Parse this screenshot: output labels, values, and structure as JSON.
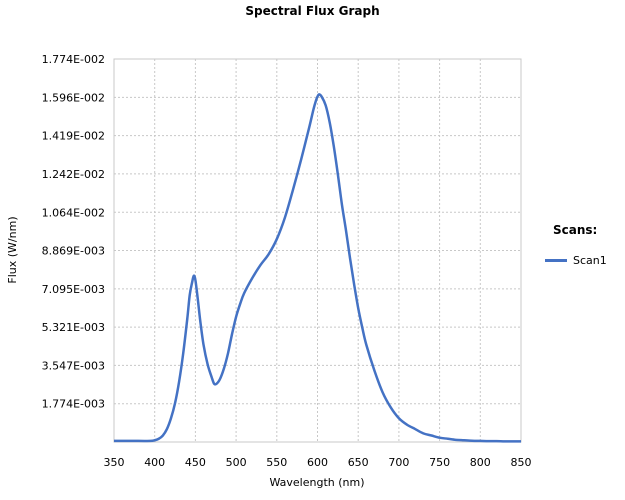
{
  "chart_data": {
    "type": "line",
    "title": "Spectral Flux Graph",
    "xlabel": "Wavelength (nm)",
    "ylabel": "Flux (W/nm)",
    "xlim": [
      350,
      850
    ],
    "ylim": [
      0,
      0.01774
    ],
    "x_ticks": [
      "350",
      "400",
      "450",
      "500",
      "550",
      "600",
      "650",
      "700",
      "750",
      "800",
      "850"
    ],
    "y_ticks": [
      "1.774E-002",
      "1.596E-002",
      "1.419E-002",
      "1.242E-002",
      "1.064E-002",
      "8.869E-003",
      "7.095E-003",
      "5.321E-003",
      "3.547E-003",
      "1.774E-003"
    ],
    "grid": true,
    "legend": {
      "title": "Scans:",
      "position": "right"
    },
    "series": [
      {
        "name": "Scan1",
        "color": "#4472c4",
        "x": [
          350,
          380,
          395,
          400,
          405,
          410,
          415,
          420,
          425,
          430,
          435,
          440,
          443,
          446,
          448,
          450,
          453,
          456,
          460,
          465,
          470,
          473,
          476,
          480,
          485,
          490,
          495,
          500,
          505,
          510,
          520,
          530,
          540,
          550,
          560,
          570,
          580,
          590,
          595,
          598,
          600,
          602,
          605,
          610,
          615,
          620,
          625,
          630,
          635,
          640,
          645,
          650,
          655,
          660,
          670,
          680,
          690,
          700,
          710,
          720,
          730,
          740,
          750,
          760,
          770,
          780,
          790,
          800,
          810,
          820,
          830,
          840,
          850
        ],
        "y": [
          5e-05,
          5e-05,
          5e-05,
          8e-05,
          0.00015,
          0.0003,
          0.0006,
          0.0011,
          0.0018,
          0.0028,
          0.0041,
          0.0057,
          0.0068,
          0.0074,
          0.0077,
          0.0075,
          0.0066,
          0.0056,
          0.0045,
          0.0036,
          0.003,
          0.0027,
          0.0027,
          0.0029,
          0.0034,
          0.0041,
          0.005,
          0.0058,
          0.0064,
          0.0069,
          0.0076,
          0.0082,
          0.0087,
          0.0094,
          0.0104,
          0.0117,
          0.0131,
          0.0146,
          0.0154,
          0.0158,
          0.016,
          0.0161,
          0.016,
          0.0156,
          0.0148,
          0.0137,
          0.0124,
          0.011,
          0.0098,
          0.0085,
          0.0073,
          0.0062,
          0.0053,
          0.0045,
          0.0033,
          0.0023,
          0.0016,
          0.0011,
          0.0008,
          0.0006,
          0.0004,
          0.0003,
          0.0002,
          0.00015,
          0.0001,
          8e-05,
          6e-05,
          5e-05,
          4e-05,
          4e-05,
          3e-05,
          3e-05,
          3e-05
        ]
      }
    ]
  }
}
